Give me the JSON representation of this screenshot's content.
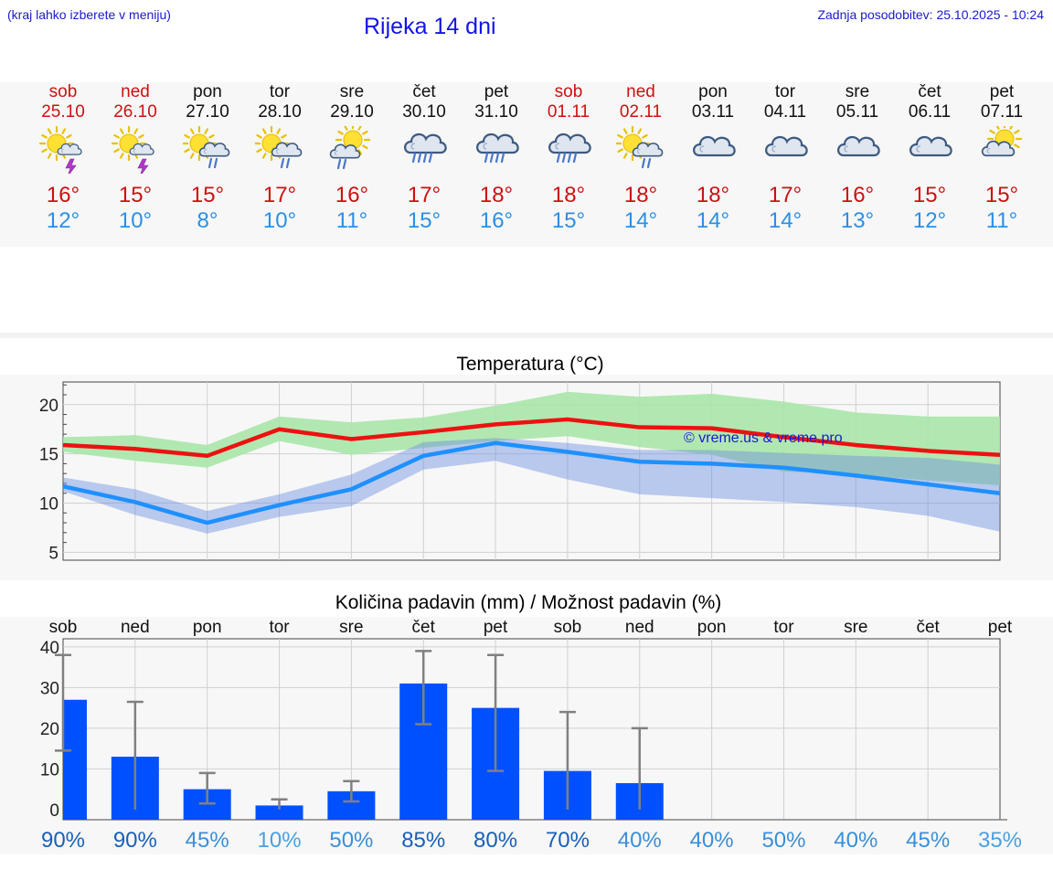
{
  "header": {
    "note": "(kraj lahko izberete v meniju)",
    "title": "Rijeka 14 dni",
    "update": "Zadnja posodobitev: 25.10.2025 - 10:24"
  },
  "colors": {
    "weekend": "#cc1111",
    "weekday": "#111111",
    "tmax": "#cc1111",
    "tmin": "#2b8fe6",
    "bar": "#0050ff",
    "error": "#808080",
    "maxBand": "#a8e6a8",
    "minBand": "#a8c4f0",
    "overlap": "#7ec8aa",
    "maxLine": "#ee1111",
    "minLine": "#1e90ff",
    "watermark": "#1a1acc"
  },
  "days": [
    {
      "name": "sob",
      "date": "25.10",
      "icon": "sun-cloud-thunder-icon",
      "max": "16°",
      "min": "12°",
      "weekend": true
    },
    {
      "name": "ned",
      "date": "26.10",
      "icon": "sun-cloud-thunder-icon",
      "max": "15°",
      "min": "10°",
      "weekend": true
    },
    {
      "name": "pon",
      "date": "27.10",
      "icon": "sun-cloud-rain-icon",
      "max": "15°",
      "min": "8°",
      "weekend": false
    },
    {
      "name": "tor",
      "date": "28.10",
      "icon": "sun-cloud-rain-icon",
      "max": "17°",
      "min": "10°",
      "weekend": false
    },
    {
      "name": "sre",
      "date": "29.10",
      "icon": "sun-cloud-light-rain-icon",
      "max": "16°",
      "min": "11°",
      "weekend": false
    },
    {
      "name": "čet",
      "date": "30.10",
      "icon": "cloud-heavy-rain-icon",
      "max": "17°",
      "min": "15°",
      "weekend": false
    },
    {
      "name": "pet",
      "date": "31.10",
      "icon": "cloud-heavy-rain-icon",
      "max": "18°",
      "min": "16°",
      "weekend": false
    },
    {
      "name": "sob",
      "date": "01.11",
      "icon": "cloud-heavy-rain-icon",
      "max": "18°",
      "min": "15°",
      "weekend": true
    },
    {
      "name": "ned",
      "date": "02.11",
      "icon": "sun-cloud-rain-icon",
      "max": "18°",
      "min": "14°",
      "weekend": true
    },
    {
      "name": "pon",
      "date": "03.11",
      "icon": "cloud-icon",
      "max": "18°",
      "min": "14°",
      "weekend": false
    },
    {
      "name": "tor",
      "date": "04.11",
      "icon": "cloud-icon",
      "max": "17°",
      "min": "14°",
      "weekend": false
    },
    {
      "name": "sre",
      "date": "05.11",
      "icon": "cloud-icon",
      "max": "16°",
      "min": "13°",
      "weekend": false
    },
    {
      "name": "čet",
      "date": "06.11",
      "icon": "cloud-icon",
      "max": "15°",
      "min": "12°",
      "weekend": false
    },
    {
      "name": "pet",
      "date": "07.11",
      "icon": "sun-cloud-icon",
      "max": "15°",
      "min": "11°",
      "weekend": false
    }
  ],
  "chart_data": [
    {
      "type": "line",
      "title": "Temperatura (°C)",
      "watermark": "© vreme.us & vreme.pro",
      "x": [
        0,
        1,
        2,
        3,
        4,
        5,
        6,
        7,
        8,
        9,
        10,
        11,
        12,
        13
      ],
      "ylim": [
        4.2,
        22.3
      ],
      "yticks": [
        5,
        10,
        15,
        20
      ],
      "series": [
        {
          "name": "max",
          "values": [
            15.9,
            15.5,
            14.8,
            17.5,
            16.5,
            17.2,
            18.0,
            18.5,
            17.7,
            17.6,
            16.7,
            15.9,
            15.3,
            14.9
          ],
          "band_low": [
            15.2,
            14.3,
            13.6,
            16.3,
            14.9,
            15.6,
            16.3,
            16.8,
            15.7,
            14.9,
            13.2,
            12.9,
            12.3,
            11.8
          ],
          "band_high": [
            16.7,
            16.9,
            15.9,
            18.8,
            18.2,
            18.7,
            19.9,
            21.3,
            20.8,
            21.1,
            20.3,
            19.2,
            18.8,
            18.8
          ]
        },
        {
          "name": "min",
          "values": [
            11.7,
            10.1,
            8.0,
            9.8,
            11.4,
            14.8,
            16.1,
            15.2,
            14.2,
            14.0,
            13.6,
            12.8,
            11.9,
            11.0
          ],
          "band_low": [
            11.2,
            8.8,
            6.9,
            8.6,
            9.7,
            13.4,
            14.3,
            12.4,
            10.9,
            10.5,
            10.1,
            9.6,
            8.7,
            7.1
          ],
          "band_high": [
            12.6,
            11.4,
            9.2,
            10.9,
            12.9,
            16.2,
            16.6,
            16.1,
            15.4,
            15.4,
            15.1,
            14.8,
            14.6,
            13.9
          ]
        }
      ]
    },
    {
      "type": "bar",
      "title": "Količina padavin (mm) / Možnost padavin (%)",
      "categories": [
        "sob",
        "ned",
        "pon",
        "tor",
        "sre",
        "čet",
        "pet",
        "sob",
        "ned",
        "pon",
        "tor",
        "sre",
        "čet",
        "pet"
      ],
      "ylim": [
        -2.5,
        42
      ],
      "yticks": [
        0,
        10,
        20,
        30,
        40
      ],
      "values": [
        27.0,
        13.0,
        5.0,
        1.0,
        4.5,
        31.0,
        25.0,
        9.5,
        6.5,
        0,
        0,
        0,
        0,
        0
      ],
      "error_low": [
        14.5,
        0,
        1.5,
        0,
        2.0,
        21.0,
        9.5,
        0,
        0,
        0,
        0,
        0,
        0,
        0
      ],
      "error_high": [
        38.0,
        26.5,
        9.0,
        2.5,
        7.0,
        39.0,
        38.0,
        24.0,
        20.0,
        0,
        0,
        0,
        0,
        0
      ],
      "probability": [
        "90%",
        "90%",
        "45%",
        "10%",
        "50%",
        "85%",
        "80%",
        "70%",
        "40%",
        "40%",
        "50%",
        "40%",
        "45%",
        "35%"
      ],
      "probability_values": [
        90,
        90,
        45,
        10,
        50,
        85,
        80,
        70,
        40,
        40,
        50,
        40,
        45,
        35
      ]
    }
  ]
}
